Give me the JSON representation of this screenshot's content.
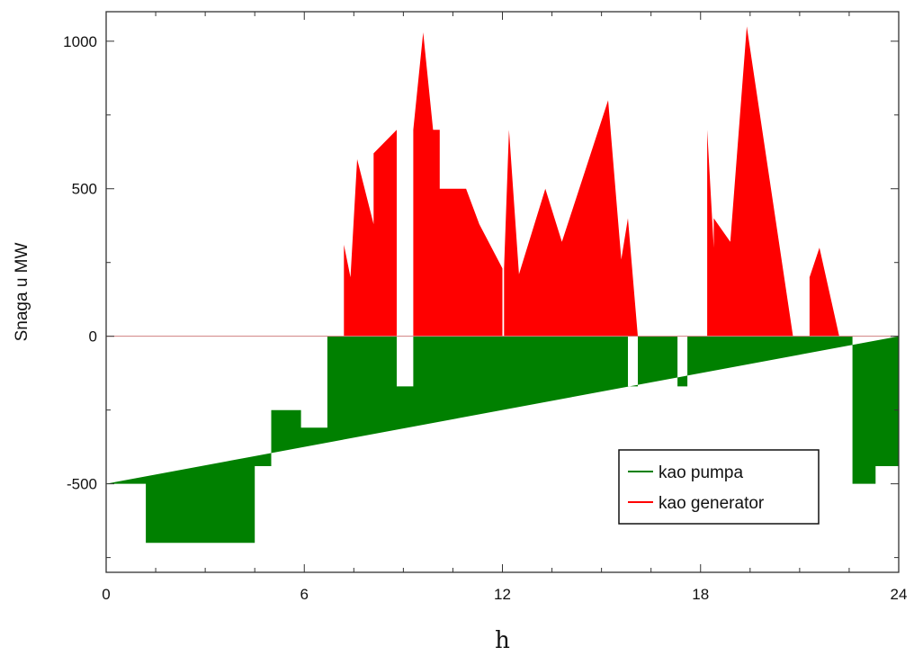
{
  "chart_data": {
    "type": "area",
    "xlabel": "h",
    "ylabel": "Snaga u MW",
    "xlim": [
      0,
      24
    ],
    "ylim": [
      -800,
      1100
    ],
    "xticks": [
      0,
      6,
      12,
      18,
      24
    ],
    "yticks": [
      -500,
      0,
      500,
      1000
    ],
    "grid": false,
    "legend_position": "bottom-right",
    "series": [
      {
        "name": "kao pumpa",
        "color": "#008000",
        "points": [
          [
            0,
            -500
          ],
          [
            1.2,
            -500
          ],
          [
            1.2,
            -700
          ],
          [
            4.5,
            -700
          ],
          [
            4.5,
            -440
          ],
          [
            5,
            -440
          ],
          [
            5,
            -250
          ],
          [
            5.9,
            -250
          ],
          [
            5.9,
            -310
          ],
          [
            6.7,
            -310
          ],
          [
            6.7,
            0
          ],
          [
            8.8,
            0
          ],
          [
            8.8,
            -170
          ],
          [
            9.3,
            -170
          ],
          [
            9.3,
            0
          ],
          [
            15.8,
            0
          ],
          [
            15.8,
            -170
          ],
          [
            16.1,
            -170
          ],
          [
            16.1,
            0
          ],
          [
            17.3,
            0
          ],
          [
            17.3,
            -170
          ],
          [
            17.6,
            -170
          ],
          [
            17.6,
            0
          ],
          [
            22.6,
            0
          ],
          [
            22.6,
            -500
          ],
          [
            23.3,
            -500
          ],
          [
            23.3,
            -440
          ],
          [
            24,
            -440
          ],
          [
            24,
            0
          ]
        ]
      },
      {
        "name": "kao generator",
        "color": "#ff0000",
        "points": [
          [
            7.2,
            0
          ],
          [
            7.2,
            310
          ],
          [
            7.4,
            200
          ],
          [
            7.6,
            600
          ],
          [
            8.1,
            380
          ],
          [
            8.1,
            620
          ],
          [
            8.8,
            700
          ],
          [
            8.8,
            0
          ],
          [
            9.3,
            0
          ],
          [
            9.3,
            700
          ],
          [
            9.6,
            1030
          ],
          [
            9.9,
            700
          ],
          [
            10.1,
            700
          ],
          [
            10.1,
            500
          ],
          [
            10.9,
            500
          ],
          [
            11.3,
            380
          ],
          [
            12,
            230
          ],
          [
            12,
            0
          ],
          [
            12.05,
            0
          ],
          [
            12.05,
            230
          ],
          [
            12.2,
            700
          ],
          [
            12.5,
            210
          ],
          [
            13.3,
            500
          ],
          [
            13.8,
            320
          ],
          [
            15.2,
            800
          ],
          [
            15.6,
            260
          ],
          [
            15.8,
            400
          ],
          [
            16.1,
            0
          ]
        ]
      },
      {
        "name": "",
        "color": "#ff0000",
        "points": [
          [
            18.2,
            0
          ],
          [
            18.2,
            700
          ],
          [
            18.4,
            300
          ],
          [
            18.4,
            400
          ],
          [
            18.9,
            320
          ],
          [
            19.4,
            1050
          ],
          [
            20.8,
            0
          ]
        ]
      },
      {
        "name": "",
        "color": "#ff0000",
        "points": [
          [
            21.3,
            0
          ],
          [
            21.3,
            200
          ],
          [
            21.6,
            300
          ],
          [
            22.2,
            0
          ]
        ]
      }
    ]
  }
}
